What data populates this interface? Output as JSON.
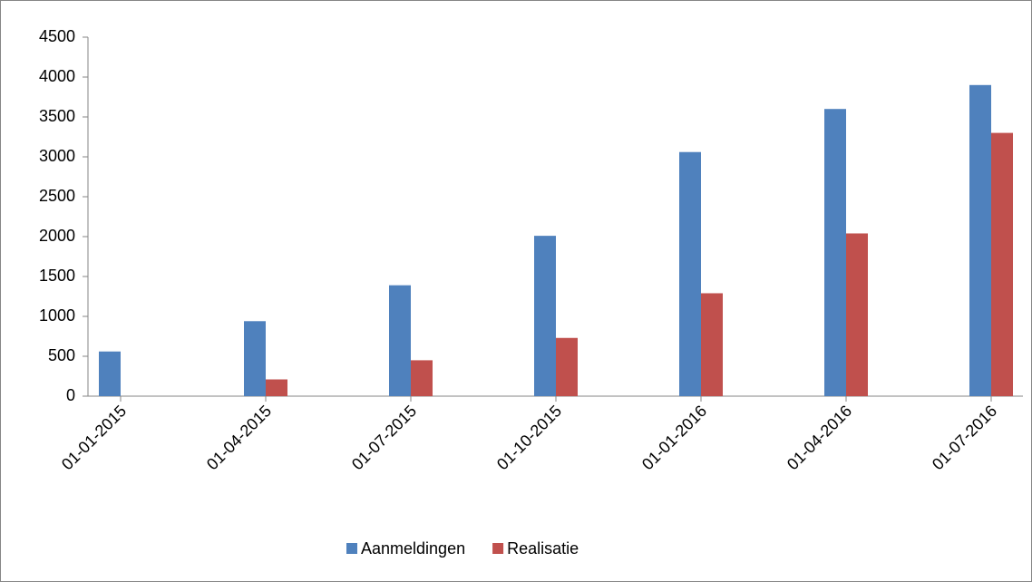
{
  "chart_data": {
    "type": "bar",
    "categories": [
      "01-01-2015",
      "01-04-2015",
      "01-07-2015",
      "01-10-2015",
      "01-01-2016",
      "01-04-2016",
      "01-07-2016"
    ],
    "series": [
      {
        "name": "Aanmeldingen",
        "color": "#4f81bd",
        "values": [
          560,
          940,
          1390,
          2010,
          3060,
          3600,
          3900
        ]
      },
      {
        "name": "Realisatie",
        "color": "#c0504d",
        "values": [
          0,
          210,
          450,
          730,
          1290,
          2040,
          3300
        ]
      }
    ],
    "ylim": [
      0,
      4500
    ],
    "yticks": [
      0,
      500,
      1000,
      1500,
      2000,
      2500,
      3000,
      3500,
      4000,
      4500
    ],
    "grid": false,
    "legend": "bottom"
  }
}
